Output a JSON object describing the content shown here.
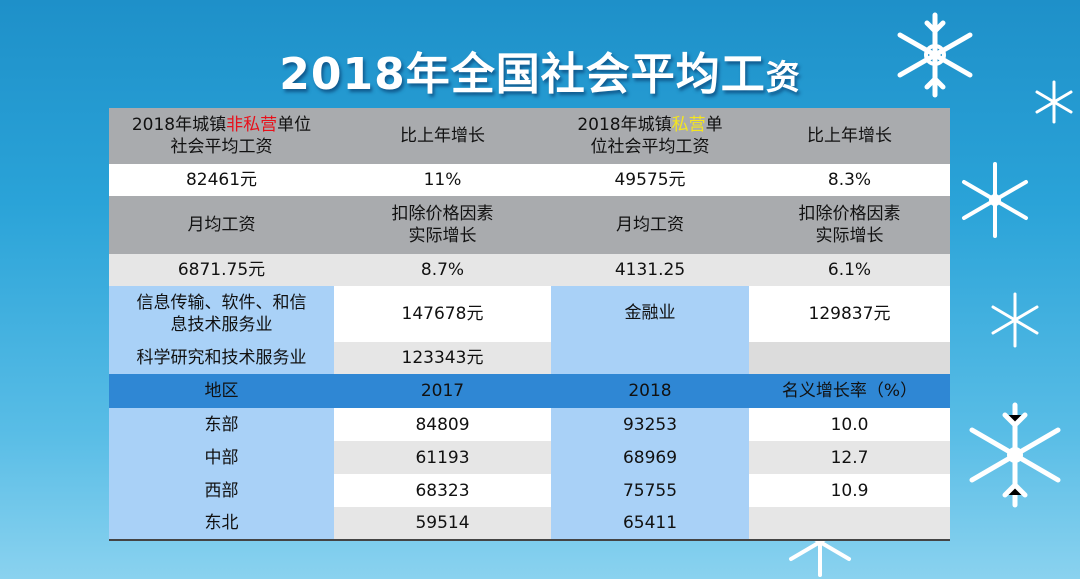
{
  "title": {
    "main": "2018年全国社会平均工",
    "last_char": "资"
  },
  "row_header_1": {
    "c1_prefix": "2018年城镇",
    "c1_highlight": "非私营",
    "c1_suffix": "单位",
    "c1_line2": "社会平均工资",
    "c2": "比上年增长",
    "c3_prefix": "2018年城镇",
    "c3_highlight": "私营",
    "c3_suffix": "单",
    "c3_line2": "位社会平均工资",
    "c4": "比上年增长"
  },
  "row_values_1": {
    "c1": "82461元",
    "c2": "11%",
    "c3": "49575元",
    "c4": "8.3%"
  },
  "row_header_2": {
    "c1": "月均工资",
    "c2_line1": "扣除价格因素",
    "c2_line2": "实际增长",
    "c3": "月均工资",
    "c4_line1": "扣除价格因素",
    "c4_line2": "实际增长"
  },
  "row_values_2": {
    "c1": "6871.75元",
    "c2": "8.7%",
    "c3": "4131.25",
    "c4": "6.1%"
  },
  "industry": {
    "r1_c1_line1": "信息传输、软件、和信",
    "r1_c1_line2": "息技术服务业",
    "r1_c2": "147678元",
    "r1_c3": "金融业",
    "r1_c4": "129837元",
    "r2_c1": "科学研究和技术服务业",
    "r2_c2": "123343元"
  },
  "region_header": {
    "c1": "地区",
    "c2": "2017",
    "c3": "2018",
    "c4": "名义增长率（%）"
  },
  "regions": [
    {
      "name": "东部",
      "y2017": "84809",
      "y2018": "93253",
      "growth": "10.0"
    },
    {
      "name": "中部",
      "y2017": "61193",
      "y2018": "68969",
      "growth": "12.7"
    },
    {
      "name": "西部",
      "y2017": "68323",
      "y2018": "75755",
      "growth": "10.9"
    },
    {
      "name": "东北",
      "y2017": "59514",
      "y2018": "65411",
      "growth": ""
    }
  ],
  "colors": {
    "header_grey": "#a9abae",
    "region_header_blue": "#2f87d4",
    "light_blue": "#a9d1f7",
    "red": "#e8101a",
    "yellow": "#f5e61e"
  }
}
